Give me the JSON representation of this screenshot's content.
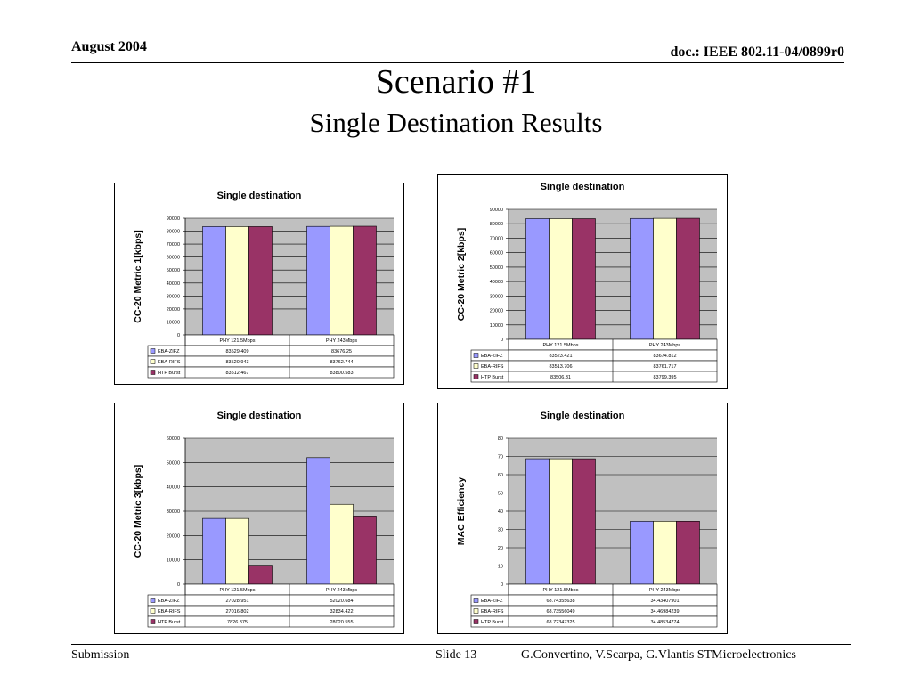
{
  "header": {
    "date": "August 2004",
    "doc": "doc.: IEEE 802.11-04/0899r0"
  },
  "slide": {
    "title": "Scenario #1",
    "subtitle": "Single Destination Results"
  },
  "footer": {
    "left": "Submission",
    "center": "Slide 13",
    "right": "G.Convertino, V.Scarpa, G.Vlantis  STMicroelectronics"
  },
  "colors": {
    "plot_bg": "#c0c0c0",
    "series": [
      "#9999ff",
      "#ffffcc",
      "#993366"
    ]
  },
  "chart_data": [
    {
      "type": "bar",
      "title": "Single destination",
      "ylabel": "CC-20 Metric 1[kbps]",
      "categories": [
        "PHY 121.5Mbps",
        "PHY 243Mbps"
      ],
      "ylim": [
        0,
        90000
      ],
      "yticks": [
        "0",
        "10000",
        "20000",
        "30000",
        "40000",
        "50000",
        "60000",
        "70000",
        "80000",
        "90000"
      ],
      "series": [
        {
          "name": "EBA-ZIFZ",
          "values": [
            83529.409,
            83676.25
          ],
          "labels": [
            "83529.409",
            "83676.25"
          ]
        },
        {
          "name": "EBA-RIFS",
          "values": [
            83520.943,
            83762.744
          ],
          "labels": [
            "83520.943",
            "83762.744"
          ]
        },
        {
          "name": "HTP Burst",
          "values": [
            83512.467,
            83800.583
          ],
          "labels": [
            "83512.467",
            "83800.583"
          ]
        }
      ]
    },
    {
      "type": "bar",
      "title": "Single destination",
      "ylabel": "CC-20 Metric 2[kbps]",
      "categories": [
        "PHY 121.5Mbps",
        "PHY 243Mbps"
      ],
      "ylim": [
        0,
        90000
      ],
      "yticks": [
        "0",
        "10000",
        "20000",
        "30000",
        "40000",
        "50000",
        "60000",
        "70000",
        "80000",
        "90000"
      ],
      "series": [
        {
          "name": "EBA-ZIFZ",
          "values": [
            83523.421,
            83674.812
          ],
          "labels": [
            "83523.421",
            "83674.812"
          ]
        },
        {
          "name": "EBA-RIFS",
          "values": [
            83513.706,
            83761.717
          ],
          "labels": [
            "83513.706",
            "83761.717"
          ]
        },
        {
          "name": "HTP Burst",
          "values": [
            83506.31,
            83799.395
          ],
          "labels": [
            "83506.31",
            "83799.395"
          ]
        }
      ]
    },
    {
      "type": "bar",
      "title": "Single destination",
      "ylabel": "CC-20 Metric 3[kbps]",
      "categories": [
        "PHY 121.5Mbps",
        "PHY 243Mbps"
      ],
      "ylim": [
        0,
        60000
      ],
      "yticks": [
        "0",
        "10000",
        "20000",
        "30000",
        "40000",
        "50000",
        "60000"
      ],
      "series": [
        {
          "name": "EBA-ZIFZ",
          "values": [
            27028.951,
            52020.684
          ],
          "labels": [
            "27028.951",
            "52020.684"
          ]
        },
        {
          "name": "EBA-RIFS",
          "values": [
            27016.802,
            32834.422
          ],
          "labels": [
            "27016.802",
            "32834.422"
          ]
        },
        {
          "name": "HTP Burst",
          "values": [
            7826.875,
            28020.555
          ],
          "labels": [
            "7826.875",
            "28020.555"
          ]
        }
      ]
    },
    {
      "type": "bar",
      "title": "Single destination",
      "ylabel": "MAC Efficiency",
      "categories": [
        "PHY 121.5Mbps",
        "PHY 243Mbps"
      ],
      "ylim": [
        0,
        80
      ],
      "yticks": [
        "0",
        "10",
        "20",
        "30",
        "40",
        "50",
        "60",
        "70",
        "80"
      ],
      "series": [
        {
          "name": "EBA-ZIFZ",
          "values": [
            68.74355638,
            34.43407901
          ],
          "labels": [
            "68.74355638",
            "34.43407901"
          ]
        },
        {
          "name": "EBA-RIFS",
          "values": [
            68.73556049,
            34.46984239
          ],
          "labels": [
            "68.73556049",
            "34.46984239"
          ]
        },
        {
          "name": "HTP Burst",
          "values": [
            68.72347325,
            34.48534774
          ],
          "labels": [
            "68.72347325",
            "34.48534774"
          ]
        }
      ]
    }
  ]
}
